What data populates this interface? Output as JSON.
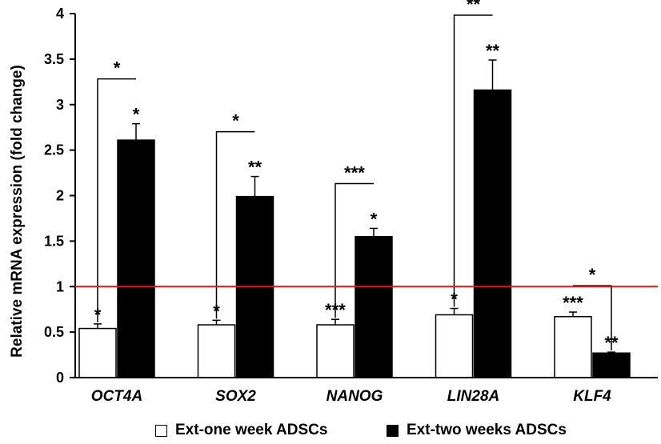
{
  "chart_data": {
    "type": "bar",
    "title": "",
    "xlabel": "",
    "ylabel": "Relative mRNA expression (fold change)",
    "ylim": [
      0,
      4
    ],
    "yticks": [
      "0",
      "0.5",
      "1",
      "1.5",
      "2",
      "2.5",
      "3",
      "3.5",
      "4"
    ],
    "categories": [
      "OCT4A",
      "SOX2",
      "NANOG",
      "LIN28A",
      "KLF4"
    ],
    "series": [
      {
        "name": "Ext-one week ADSCs",
        "color": "#ffffff",
        "values": [
          0.54,
          0.58,
          0.58,
          0.69,
          0.67
        ],
        "errors": [
          0.05,
          0.05,
          0.06,
          0.07,
          0.05
        ],
        "sig": [
          "*",
          "*",
          "***",
          "*",
          "***"
        ]
      },
      {
        "name": "Ext-two weeks ADSCs",
        "color": "#000000",
        "values": [
          2.61,
          1.99,
          1.55,
          3.16,
          0.27
        ],
        "errors": [
          0.18,
          0.22,
          0.09,
          0.33,
          0.01
        ],
        "sig": [
          "*",
          "**",
          "*",
          "**",
          "**"
        ]
      }
    ],
    "comparisons": [
      "*",
      "*",
      "***",
      "**",
      "*"
    ],
    "reference_line": {
      "y": 1,
      "color": "#e8120c"
    },
    "legend": "bottom"
  }
}
